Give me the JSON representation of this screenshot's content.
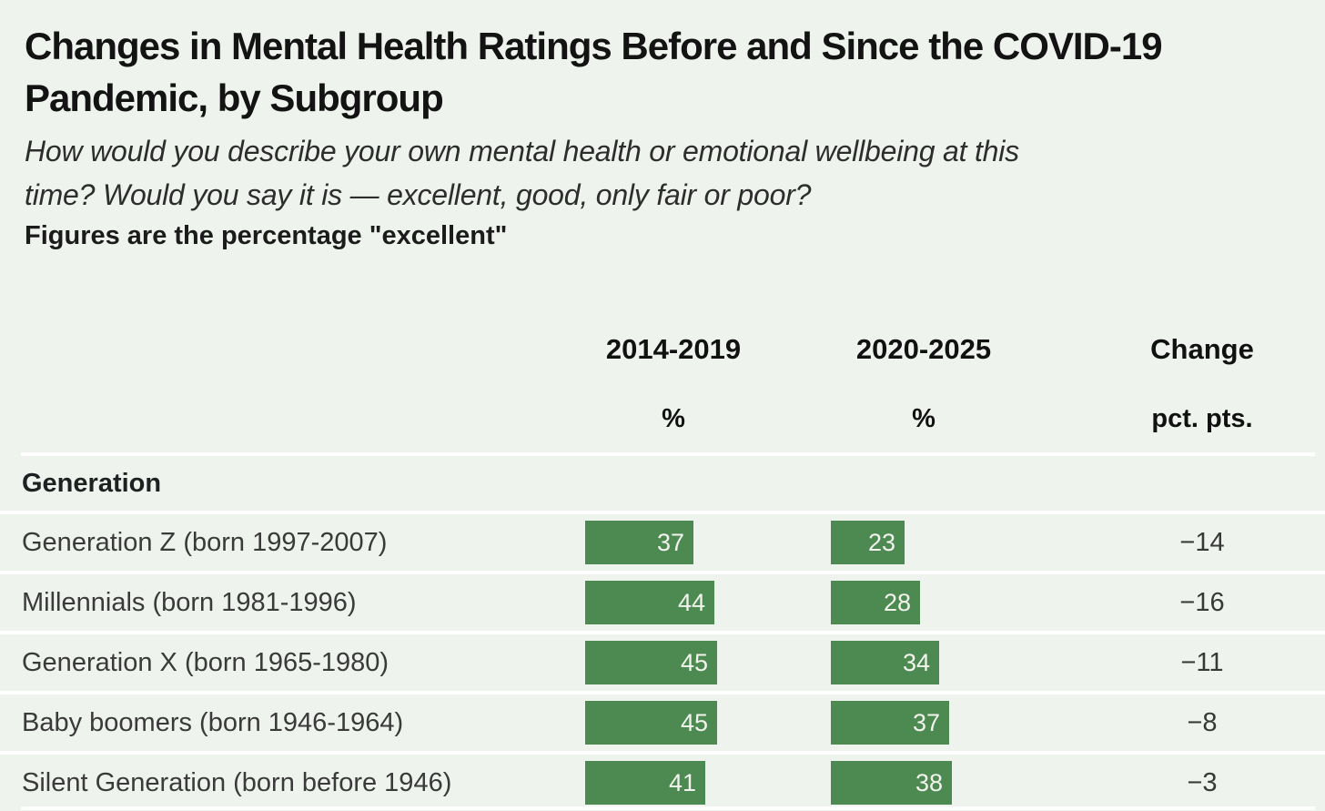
{
  "title": "Changes in Mental Health Ratings Before and Since the COVID-19 Pandemic, by Subgroup",
  "subtitle": "How would you describe your own mental health or emotional wellbeing at this time? Would you say it is — excellent, good, only fair or poor?",
  "note": "Figures are the percentage \"excellent\"",
  "chart_data": {
    "type": "bar",
    "layout_hint": "horizontal comparison bars in two period columns plus numeric change column, row separators white, no axes or gridlines",
    "columns": [
      {
        "label": "2014-2019",
        "unit": "%"
      },
      {
        "label": "2020-2025",
        "unit": "%"
      },
      {
        "label": "Change",
        "unit": "pct. pts."
      }
    ],
    "section": "Generation",
    "rows": [
      {
        "label": "Generation Z (born 1997-2007)",
        "values": [
          37,
          23
        ],
        "change": "−14"
      },
      {
        "label": "Millennials (born 1981-1996)",
        "values": [
          44,
          28
        ],
        "change": "−16"
      },
      {
        "label": "Generation X (born 1965-1980)",
        "values": [
          45,
          34
        ],
        "change": "−11"
      },
      {
        "label": "Baby boomers (born 1946-1964)",
        "values": [
          45,
          37
        ],
        "change": "−8"
      },
      {
        "label": "Silent Generation (born before 1946)",
        "values": [
          41,
          38
        ],
        "change": "−3"
      }
    ],
    "colors": {
      "bar": "#4d8a52",
      "bar_value_text": "#f2f4ed",
      "background": "#eef3ed",
      "separator": "#ffffff"
    }
  }
}
